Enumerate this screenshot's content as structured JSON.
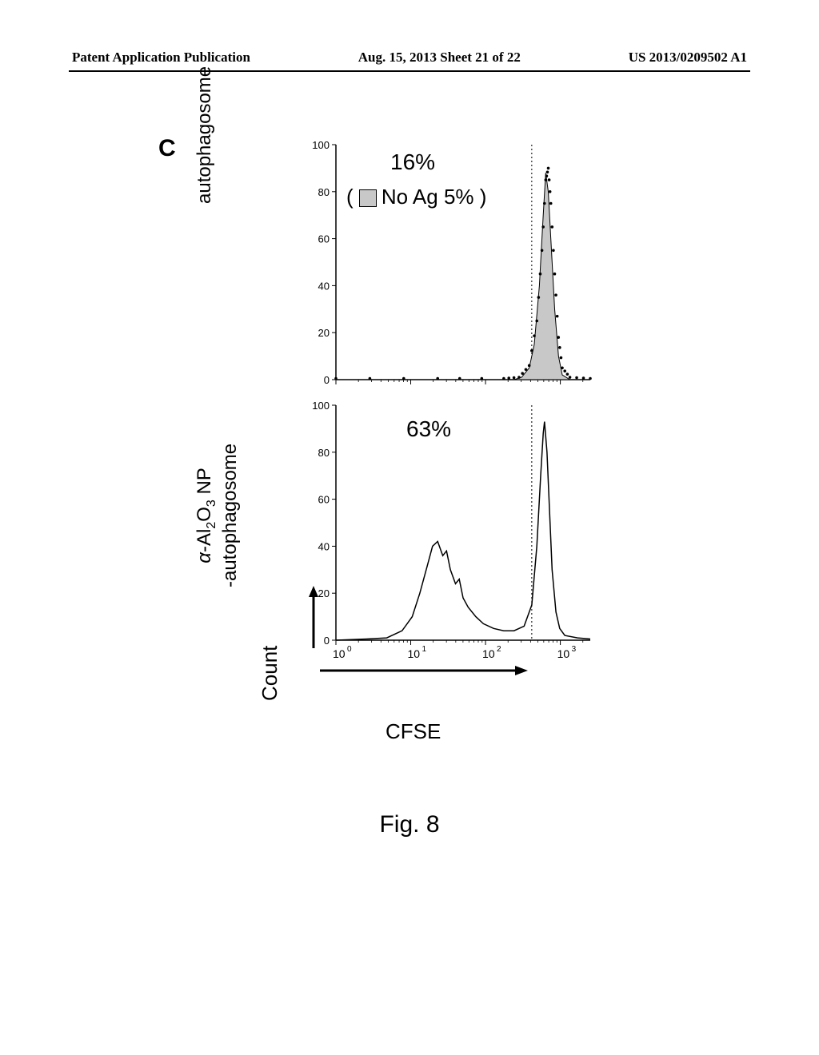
{
  "header": {
    "left": "Patent Application Publication",
    "center": "Aug. 15, 2013  Sheet 21 of 22",
    "right": "US 2013/0209502 A1"
  },
  "figure": {
    "panel_label": "C",
    "caption": "Fig. 8",
    "x_axis_label": "CFSE",
    "count_label": "Count",
    "top_chart": {
      "y_label": "autophagosome",
      "percent_label": "16%",
      "no_ag_label": "No Ag 5%",
      "ylim": [
        0,
        100
      ],
      "yticks": [
        0,
        20,
        40,
        60,
        80,
        100
      ],
      "xticks": [
        "10",
        "10",
        "10",
        "10"
      ],
      "xtick_exponents": [
        "0",
        "1",
        "2",
        "3"
      ],
      "series_fill_color": "#c8c8c8",
      "series_stroke": "#000000",
      "dotted_line_x": 0.77,
      "fill_peak": {
        "comment": "gray fill single peak near 10^3",
        "path_norm": [
          [
            0.0,
            0.0
          ],
          [
            0.5,
            0.0
          ],
          [
            0.7,
            0.0
          ],
          [
            0.73,
            0.01
          ],
          [
            0.76,
            0.05
          ],
          [
            0.78,
            0.15
          ],
          [
            0.8,
            0.4
          ],
          [
            0.815,
            0.7
          ],
          [
            0.825,
            0.88
          ],
          [
            0.835,
            0.8
          ],
          [
            0.845,
            0.6
          ],
          [
            0.86,
            0.3
          ],
          [
            0.875,
            0.1
          ],
          [
            0.89,
            0.02
          ],
          [
            0.92,
            0.0
          ],
          [
            1.0,
            0.0
          ]
        ]
      },
      "dotted_peak": {
        "path_norm": [
          [
            0.0,
            0.005
          ],
          [
            0.4,
            0.005
          ],
          [
            0.66,
            0.005
          ],
          [
            0.72,
            0.01
          ],
          [
            0.76,
            0.06
          ],
          [
            0.79,
            0.25
          ],
          [
            0.81,
            0.55
          ],
          [
            0.825,
            0.85
          ],
          [
            0.835,
            0.9
          ],
          [
            0.845,
            0.75
          ],
          [
            0.86,
            0.45
          ],
          [
            0.875,
            0.18
          ],
          [
            0.89,
            0.05
          ],
          [
            0.92,
            0.01
          ],
          [
            1.0,
            0.005
          ]
        ]
      }
    },
    "bottom_chart": {
      "y_label_line1": "α-Al₂O₃ NP",
      "y_label_line2": "-autophagosome",
      "percent_label": "63%",
      "ylim": [
        0,
        100
      ],
      "yticks": [
        0,
        20,
        40,
        60,
        80,
        100
      ],
      "xticks": [
        "10",
        "10",
        "10",
        "10"
      ],
      "xtick_exponents": [
        "0",
        "1",
        "2",
        "3"
      ],
      "series_stroke": "#000000",
      "dotted_line_x": 0.77,
      "line_peak": {
        "path_norm": [
          [
            0.0,
            0.0
          ],
          [
            0.12,
            0.005
          ],
          [
            0.2,
            0.01
          ],
          [
            0.26,
            0.04
          ],
          [
            0.3,
            0.1
          ],
          [
            0.33,
            0.2
          ],
          [
            0.36,
            0.32
          ],
          [
            0.38,
            0.4
          ],
          [
            0.4,
            0.42
          ],
          [
            0.42,
            0.36
          ],
          [
            0.435,
            0.38
          ],
          [
            0.45,
            0.3
          ],
          [
            0.47,
            0.24
          ],
          [
            0.485,
            0.26
          ],
          [
            0.5,
            0.18
          ],
          [
            0.52,
            0.14
          ],
          [
            0.55,
            0.1
          ],
          [
            0.58,
            0.07
          ],
          [
            0.62,
            0.05
          ],
          [
            0.66,
            0.04
          ],
          [
            0.7,
            0.04
          ],
          [
            0.74,
            0.06
          ],
          [
            0.77,
            0.15
          ],
          [
            0.79,
            0.4
          ],
          [
            0.805,
            0.7
          ],
          [
            0.815,
            0.88
          ],
          [
            0.82,
            0.93
          ],
          [
            0.83,
            0.8
          ],
          [
            0.84,
            0.55
          ],
          [
            0.85,
            0.3
          ],
          [
            0.865,
            0.12
          ],
          [
            0.88,
            0.05
          ],
          [
            0.9,
            0.02
          ],
          [
            0.95,
            0.01
          ],
          [
            1.0,
            0.005
          ]
        ]
      }
    }
  }
}
